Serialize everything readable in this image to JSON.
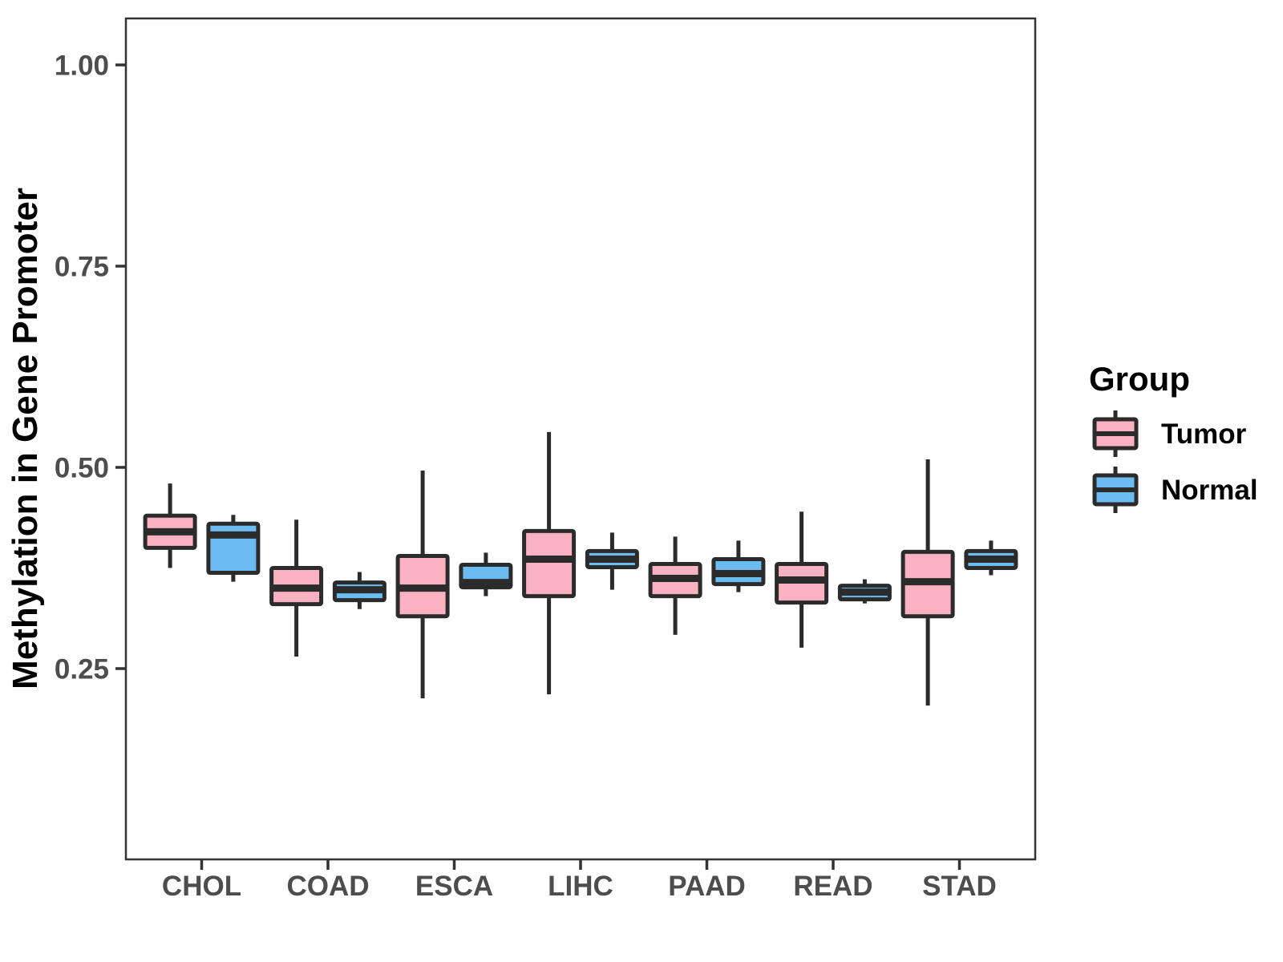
{
  "figure": {
    "background": "#ffffff",
    "legend": {
      "title": "Group",
      "items": [
        {
          "label": "Tumor",
          "color": "#FAB2C2"
        },
        {
          "label": "Normal",
          "color": "#6CBCF2"
        }
      ]
    }
  },
  "chart_data": {
    "type": "boxplot",
    "title": "",
    "xlabel": "",
    "ylabel": "Methylation in Gene Promoter",
    "categories": [
      "CHOL",
      "COAD",
      "ESCA",
      "LIHC",
      "PAAD",
      "READ",
      "STAD"
    ],
    "yticks": [
      1.0,
      0.75,
      0.5,
      0.25
    ],
    "ytick_labels": [
      "1.00",
      "0.75",
      "0.50",
      "0.25"
    ],
    "ylim": [
      0.013,
      1.058
    ],
    "grid": "off",
    "legend_position": "right",
    "stroke_color": "#2B2B2B",
    "tick_text_color": "#4D4D4D",
    "series": [
      {
        "name": "Tumor",
        "color": "#FAB2C2",
        "boxes": [
          {
            "category": "CHOL",
            "low": 0.375,
            "q1": 0.4,
            "median": 0.42,
            "q3": 0.44,
            "high": 0.48
          },
          {
            "category": "COAD",
            "low": 0.265,
            "q1": 0.33,
            "median": 0.35,
            "q3": 0.375,
            "high": 0.435
          },
          {
            "category": "ESCA",
            "low": 0.213,
            "q1": 0.315,
            "median": 0.35,
            "q3": 0.39,
            "high": 0.496
          },
          {
            "category": "LIHC",
            "low": 0.218,
            "q1": 0.34,
            "median": 0.386,
            "q3": 0.421,
            "high": 0.544
          },
          {
            "category": "PAAD",
            "low": 0.292,
            "q1": 0.34,
            "median": 0.362,
            "q3": 0.38,
            "high": 0.414
          },
          {
            "category": "READ",
            "low": 0.276,
            "q1": 0.332,
            "median": 0.36,
            "q3": 0.38,
            "high": 0.445
          },
          {
            "category": "STAD",
            "low": 0.204,
            "q1": 0.315,
            "median": 0.358,
            "q3": 0.395,
            "high": 0.51
          }
        ]
      },
      {
        "name": "Normal",
        "color": "#6CBCF2",
        "boxes": [
          {
            "category": "CHOL",
            "low": 0.358,
            "q1": 0.369,
            "median": 0.416,
            "q3": 0.43,
            "high": 0.441
          },
          {
            "category": "COAD",
            "low": 0.324,
            "q1": 0.335,
            "median": 0.348,
            "q3": 0.357,
            "high": 0.37
          },
          {
            "category": "ESCA",
            "low": 0.34,
            "q1": 0.351,
            "median": 0.357,
            "q3": 0.379,
            "high": 0.394
          },
          {
            "category": "LIHC",
            "low": 0.348,
            "q1": 0.376,
            "median": 0.386,
            "q3": 0.396,
            "high": 0.419
          },
          {
            "category": "PAAD",
            "low": 0.345,
            "q1": 0.355,
            "median": 0.368,
            "q3": 0.386,
            "high": 0.409
          },
          {
            "category": "READ",
            "low": 0.331,
            "q1": 0.336,
            "median": 0.345,
            "q3": 0.353,
            "high": 0.361
          },
          {
            "category": "STAD",
            "low": 0.366,
            "q1": 0.375,
            "median": 0.386,
            "q3": 0.396,
            "high": 0.409
          }
        ]
      }
    ]
  }
}
